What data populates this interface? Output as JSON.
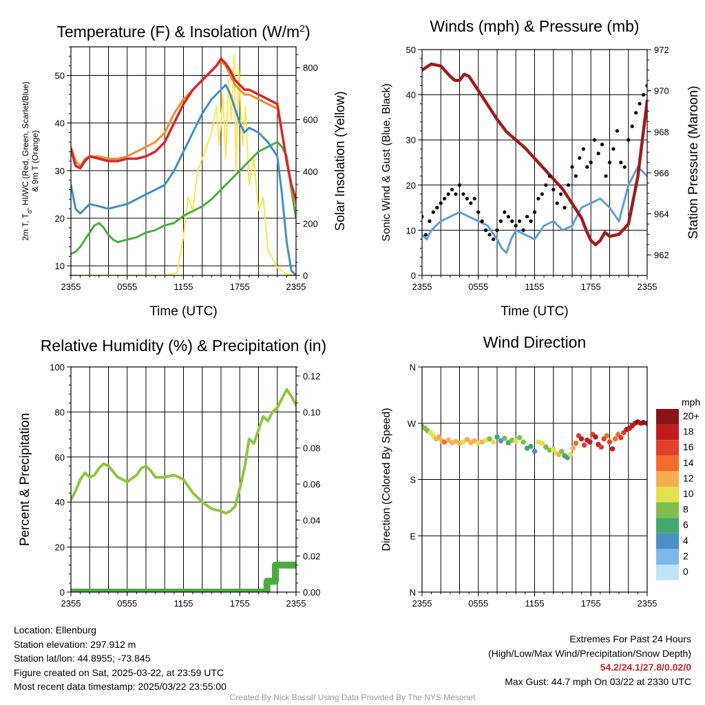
{
  "chart_data": [
    {
      "id": "temp",
      "type": "line",
      "title": "Temperature (F) & Insolation (W/m",
      "title_sup": "2",
      "title_end": ")",
      "ylabel_line1": "2m T, T",
      "ylabel_sub": "d",
      "ylabel_line1_end": ", HI/WC (Red, Green, Scarlet/Blue)",
      "ylabel_line2": "& 9m T (Orange)",
      "ylabel_right": "Solar Insolation (Yellow)",
      "xlabel": "Time (UTC)",
      "x_ticks": [
        "2355",
        "0555",
        "1155",
        "1755",
        "2355"
      ],
      "x_range": [
        0,
        24
      ],
      "ylim": [
        8,
        56
      ],
      "y_ticks": [
        10,
        20,
        30,
        40,
        50
      ],
      "ylim_right": [
        0,
        880
      ],
      "y_ticks_right": [
        0,
        200,
        400,
        600,
        800
      ],
      "grid": true,
      "series": [
        {
          "color": "#fde64b",
          "axis": "right",
          "width": 2,
          "x": [
            0,
            6,
            10,
            11.3,
            12,
            12.5,
            13,
            13.5,
            14,
            14.5,
            15,
            15.5,
            15.8,
            16.2,
            16.5,
            16.8,
            17.1,
            17.4,
            17.6,
            17.9,
            18.3,
            18.6,
            19,
            19.5,
            20,
            20.5,
            21,
            22,
            23,
            24
          ],
          "y": [
            0,
            0,
            0,
            10,
            150,
            300,
            250,
            400,
            450,
            500,
            550,
            650,
            500,
            700,
            450,
            750,
            600,
            850,
            400,
            800,
            500,
            650,
            350,
            450,
            250,
            300,
            100,
            30,
            5,
            0
          ]
        },
        {
          "color": "#4aac3f",
          "axis": "left",
          "width": 3,
          "x": [
            0,
            0.5,
            1,
            1.5,
            2,
            2.5,
            3,
            3.5,
            4,
            4.5,
            5,
            6,
            7,
            8,
            9,
            10,
            11,
            12,
            13,
            14,
            15,
            16,
            17,
            18,
            19,
            20,
            21,
            22,
            22.5,
            23,
            23.5,
            24
          ],
          "y": [
            12.5,
            13,
            14,
            15.5,
            17,
            18.5,
            19,
            18,
            16.5,
            15.5,
            15,
            15.5,
            16,
            17,
            17.5,
            18.5,
            19,
            20.5,
            21.5,
            22.5,
            24,
            26,
            28,
            30,
            32,
            34,
            35,
            36,
            35,
            33,
            26,
            20
          ]
        },
        {
          "color": "#3f8ec9",
          "axis": "left",
          "width": 3,
          "x": [
            0,
            0.5,
            1,
            1.5,
            2,
            3,
            4,
            5,
            6,
            7,
            8,
            9,
            10,
            11,
            12,
            13,
            14,
            15,
            16,
            16.5,
            17,
            17.5,
            18,
            18.5,
            19,
            20,
            21,
            22,
            22.5,
            23,
            23.5,
            24
          ],
          "y": [
            27,
            22,
            21,
            22,
            23,
            22.5,
            22,
            22.5,
            23,
            24,
            25,
            26,
            27,
            30,
            34,
            38,
            42,
            45,
            47,
            48,
            46,
            43,
            40,
            38,
            39,
            38,
            36,
            33,
            25,
            15,
            9,
            8
          ]
        },
        {
          "color": "#f58b2a",
          "axis": "left",
          "width": 3,
          "x": [
            0,
            0.5,
            1,
            1.5,
            2,
            3,
            4,
            5,
            6,
            7,
            8,
            9,
            10,
            11,
            12,
            13,
            14,
            15,
            15.5,
            16,
            16.5,
            17,
            17.5,
            18,
            18.5,
            19,
            20,
            21,
            22,
            22.5,
            23,
            23.5,
            24
          ],
          "y": [
            35,
            32,
            31,
            32.5,
            33,
            33,
            32.5,
            32.5,
            33,
            34,
            35,
            36,
            38,
            42,
            45,
            47,
            49,
            51,
            52,
            53,
            52,
            50,
            48,
            47,
            46,
            46,
            45,
            44,
            43,
            38,
            32,
            27,
            23
          ]
        },
        {
          "color": "#d62728",
          "axis": "left",
          "width": 3.5,
          "x": [
            0,
            0.5,
            1,
            1.5,
            2,
            3,
            4,
            5,
            6,
            7,
            8,
            9,
            10,
            11,
            12,
            13,
            14,
            15,
            15.5,
            16,
            16.5,
            17,
            17.5,
            18,
            18.5,
            19,
            20,
            21,
            22,
            22.5,
            23,
            23.5,
            24
          ],
          "y": [
            34.5,
            31,
            30.5,
            32,
            33,
            32.5,
            32,
            32,
            32.5,
            32.5,
            33,
            34,
            36,
            40,
            44,
            47,
            49,
            51,
            52,
            53.5,
            52.5,
            51,
            49,
            48,
            47,
            47,
            46,
            45,
            44,
            38,
            32,
            27,
            24
          ]
        }
      ]
    },
    {
      "id": "wind",
      "type": "line",
      "title": "Winds (mph) & Pressure (mb)",
      "ylabel": "Sonic Wind & Gust (Blue, Black)",
      "ylabel_right": "Station Pressure (Maroon)",
      "xlabel": "Time (UTC)",
      "x_ticks": [
        "2355",
        "0555",
        "1155",
        "1755",
        "2355"
      ],
      "x_range": [
        0,
        24
      ],
      "ylim": [
        0,
        50
      ],
      "y_ticks": [
        0,
        10,
        20,
        30,
        40,
        50
      ],
      "ylim_right": [
        961,
        972
      ],
      "y_ticks_right": [
        962,
        964,
        966,
        968,
        970,
        972
      ],
      "grid": true,
      "series": [
        {
          "color": "#5a9fd6",
          "axis": "left",
          "width": 3,
          "x": [
            0,
            0.5,
            1,
            1.5,
            2,
            3,
            4,
            5,
            6,
            7,
            8,
            8.5,
            9,
            9.5,
            10,
            11,
            12,
            13,
            14,
            15,
            16,
            17,
            18,
            19,
            20,
            21,
            22,
            23,
            24
          ],
          "y": [
            9,
            8,
            10,
            11,
            12,
            13,
            14,
            13,
            12,
            11,
            8,
            6,
            5,
            8,
            10,
            9,
            8,
            11,
            12,
            10,
            11,
            15,
            16,
            17,
            15,
            12,
            20,
            24,
            22
          ]
        },
        {
          "color": "#a01b1b",
          "axis": "right",
          "width": 4.5,
          "x": [
            0,
            1,
            2,
            3,
            3.5,
            4,
            4.5,
            5,
            6,
            7,
            8,
            9,
            10,
            11,
            12,
            13,
            14,
            15,
            16,
            17,
            17.5,
            18,
            18.5,
            19,
            19.5,
            20,
            21,
            22,
            23,
            24
          ],
          "y": [
            971.0,
            971.3,
            971.2,
            970.7,
            970.5,
            970.5,
            970.8,
            970.7,
            970.0,
            969.3,
            968.6,
            968.0,
            967.6,
            967.2,
            966.7,
            966.2,
            965.7,
            965.2,
            964.5,
            963.8,
            963.2,
            962.7,
            962.5,
            962.7,
            963.1,
            962.9,
            963.0,
            963.5,
            965.8,
            969.5
          ]
        },
        {
          "color": "#000000",
          "axis": "left",
          "kind": "dots",
          "x": [
            0,
            0.4,
            0.8,
            1.2,
            1.6,
            2,
            2.4,
            2.8,
            3.2,
            3.6,
            4,
            4.4,
            4.8,
            5.2,
            5.6,
            6,
            6.4,
            6.8,
            7.2,
            7.6,
            8,
            8.4,
            8.8,
            9.2,
            9.6,
            10,
            10.4,
            10.8,
            11.2,
            11.6,
            12,
            12.4,
            12.8,
            13.2,
            13.6,
            14,
            14.4,
            14.8,
            15.2,
            15.6,
            16,
            16.4,
            16.8,
            17.2,
            17.6,
            18,
            18.4,
            18.8,
            19.2,
            19.6,
            20,
            20.4,
            20.8,
            21.2,
            21.6,
            22,
            22.4,
            22.8,
            23.2,
            23.6,
            24
          ],
          "y": [
            13,
            9,
            12,
            14,
            15,
            16,
            17,
            18,
            19,
            18,
            20,
            18,
            17,
            16,
            17,
            14,
            12,
            10,
            9,
            8,
            10,
            12,
            14,
            13,
            12,
            11,
            12,
            10,
            13,
            12,
            14,
            17,
            18,
            20,
            22,
            19,
            16,
            18,
            15,
            20,
            24,
            22,
            26,
            28,
            24,
            25,
            30,
            27,
            29,
            22,
            25,
            28,
            32,
            25,
            24,
            30,
            33,
            36,
            38,
            40,
            42
          ]
        }
      ]
    },
    {
      "id": "rh",
      "type": "line",
      "title": "Relative Humidity (%) & Precipitation (in)",
      "ylabel": "Percent & Precipitation",
      "x_ticks": [
        "2355",
        "0555",
        "1155",
        "1755",
        "2355"
      ],
      "x_range": [
        0,
        24
      ],
      "ylim": [
        0,
        100
      ],
      "y_ticks": [
        0,
        20,
        40,
        60,
        80,
        100
      ],
      "ylim_right": [
        0,
        0.125
      ],
      "y_ticks_right": [
        "0.00",
        "0.02",
        "0.04",
        "0.06",
        "0.08",
        "0.10",
        "0.12"
      ],
      "grid": true,
      "series": [
        {
          "color": "#8dc63f",
          "axis": "left",
          "width": 4,
          "x": [
            0,
            0.5,
            1,
            1.5,
            2,
            2.5,
            3,
            3.5,
            4,
            5,
            6,
            7,
            7.5,
            8,
            8.5,
            9,
            10,
            11,
            12,
            13,
            14,
            15,
            16,
            16.5,
            17,
            17.5,
            18,
            18.5,
            19,
            19.5,
            20,
            20.5,
            21,
            21.5,
            22,
            22.5,
            23,
            23.5,
            24
          ],
          "y": [
            41,
            45,
            50,
            53,
            51,
            52,
            55,
            57,
            56,
            51,
            49,
            52,
            55,
            56,
            54,
            51,
            51,
            52,
            50,
            44,
            40,
            37,
            36,
            35,
            36,
            38,
            46,
            55,
            68,
            66,
            72,
            78,
            76,
            80,
            82,
            86,
            90,
            87,
            83
          ]
        },
        {
          "color": "#4aac3f",
          "axis": "right",
          "kind": "step",
          "width": 10,
          "x": [
            0,
            20.9,
            20.9,
            21.8,
            21.8,
            24
          ],
          "y": [
            0,
            0,
            0.006,
            0.006,
            0.015,
            0.015
          ]
        }
      ]
    },
    {
      "id": "dir",
      "type": "scatter",
      "title": "Wind Direction",
      "ylabel": "Direction (Colored By Speed)",
      "x_ticks": [
        "2355",
        "0555",
        "1155",
        "1755",
        "2355"
      ],
      "x_range": [
        0,
        24
      ],
      "ylim": [
        0,
        360
      ],
      "y_ticks": [
        "N",
        "E",
        "S",
        "W",
        "N"
      ],
      "grid": true,
      "legend_title": "mph",
      "legend_labels": [
        "0",
        "2",
        "4",
        "6",
        "8",
        "10",
        "12",
        "14",
        "16",
        "18",
        "20+"
      ],
      "legend_colors": [
        "#bfe3f7",
        "#7cb9e8",
        "#4a8fc7",
        "#44a86e",
        "#7dbf4a",
        "#e2e14f",
        "#f9ae4f",
        "#f26d2d",
        "#e0402c",
        "#c11d1f",
        "#8b1414"
      ],
      "x": [
        0,
        0.3,
        0.6,
        0.9,
        1.2,
        1.5,
        1.8,
        2.1,
        2.4,
        2.8,
        3.2,
        3.6,
        4,
        4.4,
        4.8,
        5.2,
        5.6,
        6,
        6.4,
        6.8,
        7.2,
        7.6,
        8,
        8.4,
        8.8,
        9.2,
        9.6,
        10,
        10.4,
        10.8,
        11.2,
        11.6,
        12,
        12.4,
        12.8,
        13.2,
        13.6,
        14,
        14.3,
        14.6,
        14.9,
        15.2,
        15.5,
        15.8,
        16.1,
        16.4,
        16.7,
        17,
        17.3,
        17.6,
        17.9,
        18.2,
        18.5,
        18.8,
        19.1,
        19.4,
        19.7,
        20,
        20.3,
        20.6,
        20.9,
        21.2,
        21.5,
        21.8,
        22.1,
        22.4,
        22.7,
        23,
        23.3,
        23.6,
        24
      ],
      "y": [
        265,
        262,
        258,
        255,
        250,
        245,
        248,
        242,
        240,
        243,
        239,
        241,
        238,
        240,
        244,
        239,
        242,
        238,
        240,
        243,
        245,
        240,
        248,
        242,
        246,
        239,
        243,
        241,
        247,
        240,
        230,
        233,
        225,
        240,
        238,
        232,
        227,
        228,
        222,
        220,
        225,
        218,
        215,
        220,
        230,
        238,
        250,
        245,
        235,
        243,
        240,
        252,
        248,
        236,
        232,
        245,
        250,
        240,
        229,
        245,
        252,
        247,
        255,
        260,
        262,
        266,
        270,
        272,
        270,
        271,
        270
      ],
      "speed": [
        9,
        8,
        9,
        10,
        11,
        12,
        12,
        13,
        14,
        13,
        12,
        13,
        12,
        11,
        12,
        13,
        12,
        11,
        12,
        10,
        8,
        10,
        7,
        5,
        8,
        6,
        9,
        10,
        8,
        9,
        7,
        6,
        5,
        10,
        11,
        9,
        8,
        10,
        11,
        12,
        9,
        7,
        6,
        11,
        13,
        15,
        16,
        18,
        17,
        19,
        18,
        17,
        19,
        18,
        17,
        16,
        15,
        17,
        18,
        15,
        14,
        16,
        17,
        18,
        19,
        18,
        19,
        20,
        19,
        20,
        21
      ]
    }
  ],
  "info": {
    "location": "Location: Ellenburg",
    "elevation": "Station elevation: 297.912 m",
    "latlon": "Station lat/lon: 44.8955; -73.845",
    "created": "Figure created on Sat, 2025-03-22, at 23:59 UTC",
    "recent": "Most recent data timestamp: 2025/03/22 23:55:00"
  },
  "extremes": {
    "title": "Extremes For Past 24 Hours",
    "subtitle": "(High/Low/Max Wind/Precipitation/Snow Depth)",
    "values": "54.2/24.1/27.8/0.02/0",
    "gust": "Max Gust: 44.7 mph On 03/22 at 2330 UTC"
  },
  "credit": "Created By Nick Bassill Using Data Provided By The NYS Mesonet"
}
